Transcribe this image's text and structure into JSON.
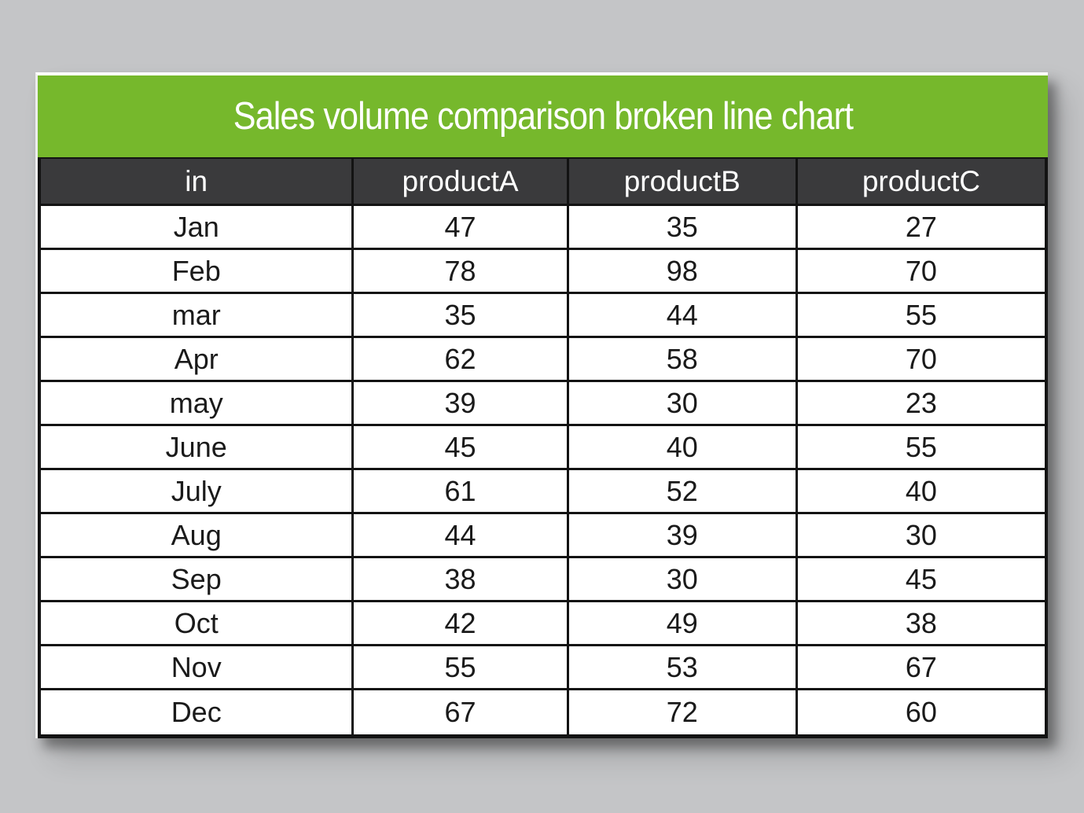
{
  "colors": {
    "page-bg": "#c4c5c7",
    "accent-green": "#76b82c",
    "header-bg": "#3a3a3c",
    "grid-border": "#131313"
  },
  "table": {
    "title": "Sales volume comparison broken line chart",
    "columns": [
      "in",
      "productA",
      "productB",
      "productC"
    ],
    "rows": [
      [
        "Jan",
        "47",
        "35",
        "27"
      ],
      [
        "Feb",
        "78",
        "98",
        "70"
      ],
      [
        "mar",
        "35",
        "44",
        "55"
      ],
      [
        "Apr",
        "62",
        "58",
        "70"
      ],
      [
        "may",
        "39",
        "30",
        "23"
      ],
      [
        "June",
        "45",
        "40",
        "55"
      ],
      [
        "July",
        "61",
        "52",
        "40"
      ],
      [
        "Aug",
        "44",
        "39",
        "30"
      ],
      [
        "Sep",
        "38",
        "30",
        "45"
      ],
      [
        "Oct",
        "42",
        "49",
        "38"
      ],
      [
        "Nov",
        "55",
        "53",
        "67"
      ],
      [
        "Dec",
        "67",
        "72",
        "60"
      ]
    ]
  },
  "chart_data": {
    "type": "table",
    "title": "Sales volume comparison broken line chart",
    "categories": [
      "Jan",
      "Feb",
      "mar",
      "Apr",
      "may",
      "June",
      "July",
      "Aug",
      "Sep",
      "Oct",
      "Nov",
      "Dec"
    ],
    "series": [
      {
        "name": "productA",
        "values": [
          47,
          78,
          35,
          62,
          39,
          45,
          61,
          44,
          38,
          42,
          55,
          67
        ]
      },
      {
        "name": "productB",
        "values": [
          35,
          98,
          44,
          58,
          30,
          40,
          52,
          39,
          30,
          49,
          53,
          72
        ]
      },
      {
        "name": "productC",
        "values": [
          27,
          70,
          55,
          70,
          23,
          55,
          40,
          30,
          45,
          38,
          67,
          60
        ]
      }
    ]
  }
}
